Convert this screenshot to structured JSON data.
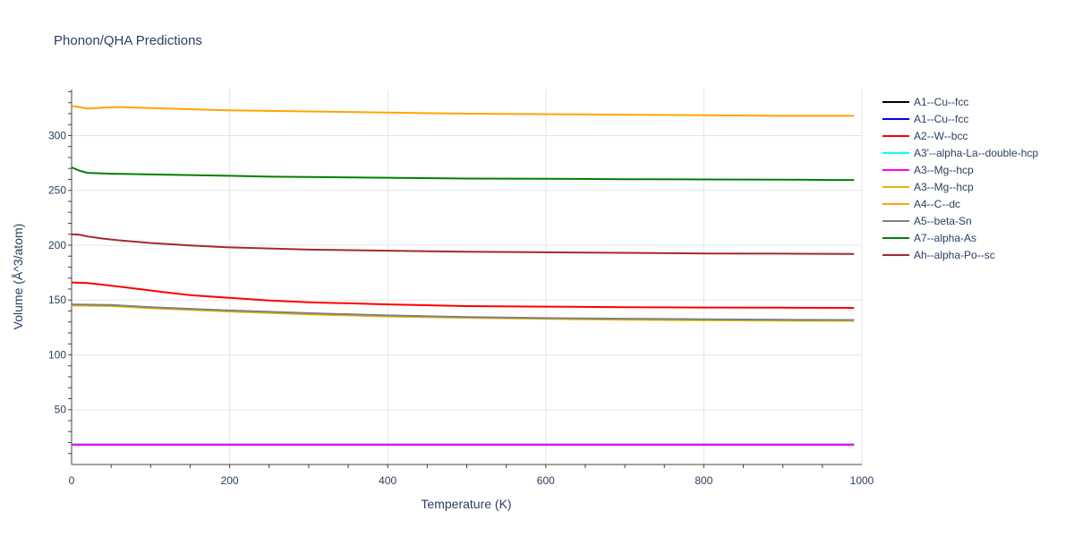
{
  "chart_data": {
    "type": "line",
    "title": "Phonon/QHA Predictions",
    "xlabel": "Temperature (K)",
    "ylabel": "Volume (Å^3/atom)",
    "xlim": [
      0,
      1000
    ],
    "ylim": [
      0,
      342
    ],
    "x_ticks": [
      0,
      200,
      400,
      600,
      800,
      1000
    ],
    "y_ticks": [
      50,
      100,
      150,
      200,
      250,
      300
    ],
    "grid": true,
    "legend_position": "right",
    "series": [
      {
        "name": "A1--Cu--fcc",
        "color": "#000000",
        "points": [
          [
            0,
            18.1
          ],
          [
            200,
            18.1
          ],
          [
            400,
            18.1
          ],
          [
            600,
            18.1
          ],
          [
            800,
            18.1
          ],
          [
            990,
            18.1
          ]
        ]
      },
      {
        "name": "A1--Cu--fcc",
        "color": "#0000ff",
        "points": [
          [
            0,
            18.0
          ],
          [
            200,
            18.0
          ],
          [
            400,
            18.0
          ],
          [
            600,
            18.0
          ],
          [
            800,
            18.0
          ],
          [
            990,
            18.0
          ]
        ]
      },
      {
        "name": "A2--W--bcc",
        "color": "#ff0000",
        "points": [
          [
            0,
            166
          ],
          [
            20,
            165.5
          ],
          [
            40,
            164
          ],
          [
            80,
            160.5
          ],
          [
            120,
            157
          ],
          [
            150,
            154.5
          ],
          [
            200,
            152
          ],
          [
            250,
            149.5
          ],
          [
            300,
            148
          ],
          [
            400,
            146
          ],
          [
            500,
            144.5
          ],
          [
            600,
            144
          ],
          [
            700,
            143.5
          ],
          [
            800,
            143.2
          ],
          [
            900,
            143
          ],
          [
            990,
            142.8
          ]
        ]
      },
      {
        "name": "A3'--alpha-La--double-hcp",
        "color": "#00ffff",
        "points": [
          [
            0,
            18.3
          ],
          [
            200,
            18.3
          ],
          [
            400,
            18.3
          ],
          [
            600,
            18.3
          ],
          [
            800,
            18.3
          ],
          [
            990,
            18.3
          ]
        ]
      },
      {
        "name": "A3--Mg--hcp",
        "color": "#ff00ff",
        "points": [
          [
            0,
            18.2
          ],
          [
            200,
            18.2
          ],
          [
            400,
            18.2
          ],
          [
            600,
            18.2
          ],
          [
            800,
            18.2
          ],
          [
            990,
            18.2
          ]
        ]
      },
      {
        "name": "A3--Mg--hcp",
        "color": "#e6b800",
        "points": [
          [
            0,
            145
          ],
          [
            50,
            144.5
          ],
          [
            100,
            142.5
          ],
          [
            200,
            139.5
          ],
          [
            300,
            137
          ],
          [
            400,
            135
          ],
          [
            500,
            133.8
          ],
          [
            600,
            132.8
          ],
          [
            700,
            132
          ],
          [
            800,
            131.5
          ],
          [
            900,
            131.2
          ],
          [
            990,
            131
          ]
        ]
      },
      {
        "name": "A4--C--dc",
        "color": "#ffa500",
        "points": [
          [
            0,
            327
          ],
          [
            10,
            326
          ],
          [
            20,
            324.5
          ],
          [
            40,
            325.5
          ],
          [
            60,
            326
          ],
          [
            100,
            325
          ],
          [
            200,
            323
          ],
          [
            300,
            322
          ],
          [
            400,
            321
          ],
          [
            500,
            320
          ],
          [
            600,
            319.5
          ],
          [
            700,
            319
          ],
          [
            800,
            318.5
          ],
          [
            900,
            318
          ],
          [
            990,
            318
          ]
        ]
      },
      {
        "name": "A5--beta-Sn",
        "color": "#808080",
        "points": [
          [
            0,
            146
          ],
          [
            50,
            145.5
          ],
          [
            100,
            143.5
          ],
          [
            200,
            140.5
          ],
          [
            300,
            138
          ],
          [
            400,
            136
          ],
          [
            500,
            134.5
          ],
          [
            600,
            133.5
          ],
          [
            700,
            133
          ],
          [
            800,
            132.5
          ],
          [
            900,
            132
          ],
          [
            990,
            131.8
          ]
        ]
      },
      {
        "name": "A7--alpha-As",
        "color": "#008000",
        "points": [
          [
            0,
            271
          ],
          [
            10,
            268
          ],
          [
            20,
            266
          ],
          [
            50,
            265.2
          ],
          [
            100,
            264.5
          ],
          [
            200,
            263.3
          ],
          [
            250,
            262.5
          ],
          [
            300,
            262.2
          ],
          [
            400,
            261.5
          ],
          [
            500,
            260.8
          ],
          [
            600,
            260.5
          ],
          [
            700,
            260.2
          ],
          [
            800,
            260
          ],
          [
            900,
            259.8
          ],
          [
            960,
            259.5
          ],
          [
            990,
            259.5
          ]
        ]
      },
      {
        "name": "Ah--alpha-Po--sc",
        "color": "#a52a2a",
        "points": [
          [
            0,
            210
          ],
          [
            10,
            209.5
          ],
          [
            20,
            208
          ],
          [
            40,
            206
          ],
          [
            60,
            204.5
          ],
          [
            100,
            202
          ],
          [
            150,
            199.8
          ],
          [
            200,
            198
          ],
          [
            300,
            196
          ],
          [
            400,
            195
          ],
          [
            500,
            194
          ],
          [
            600,
            193.5
          ],
          [
            700,
            193
          ],
          [
            800,
            192.5
          ],
          [
            900,
            192.3
          ],
          [
            990,
            192
          ]
        ]
      }
    ]
  }
}
